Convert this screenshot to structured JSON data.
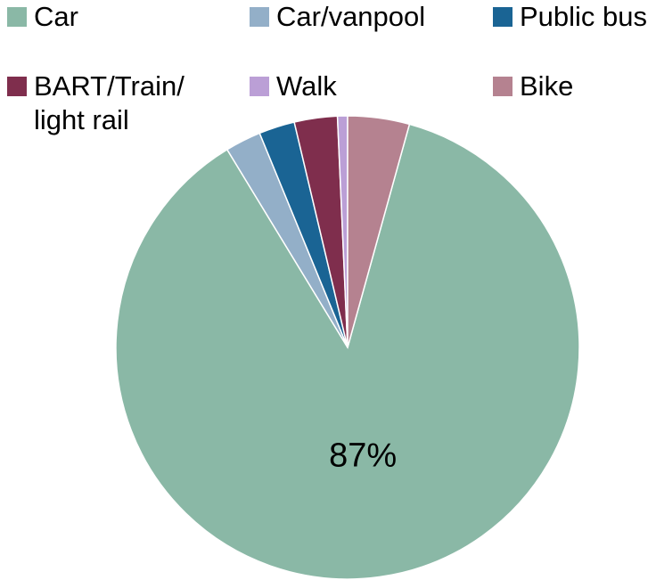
{
  "chart_data": {
    "type": "pie",
    "categories": [
      "Car",
      "Car/vanpool",
      "Public bus",
      "BART/Train/ light rail",
      "Walk",
      "Bike"
    ],
    "values": [
      87,
      2.5,
      2.5,
      3,
      0.7,
      4.3
    ],
    "value_labels": [
      "87%",
      null,
      null,
      null,
      null,
      null
    ],
    "colors": [
      "#8ab8a6",
      "#93afc8",
      "#1a6494",
      "#7f2e4d",
      "#bb9fd6",
      "#b58290"
    ],
    "legend": "top"
  }
}
